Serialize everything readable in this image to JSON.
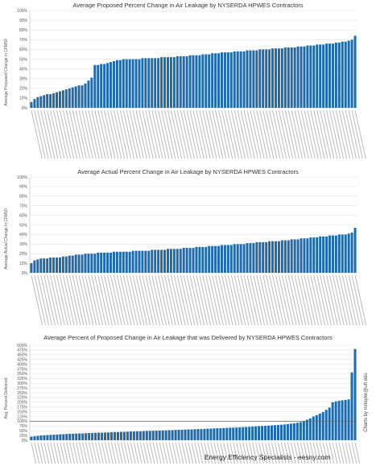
{
  "footer": {
    "text": "Energy Efficiency Specialists - eesny.com"
  },
  "credit": {
    "text": "Charts by mrtaylor@uft.edu"
  },
  "chart_data": [
    {
      "type": "bar",
      "title": "Average Proposed Percent Change in Air Leakage by NYSERDA HPWES Contractors",
      "xlabel": "",
      "ylabel": "Average Proposed Change in CFM50",
      "ylim": [
        0,
        100
      ],
      "yticks": [
        0,
        10,
        20,
        30,
        40,
        50,
        60,
        70,
        80,
        90,
        100
      ],
      "tick_suffix": "%",
      "bar_color": "#1f6aa8",
      "grid": true,
      "reference_line": null,
      "values": [
        6,
        9,
        11,
        12,
        13,
        14,
        14,
        15,
        16,
        17,
        18,
        19,
        20,
        21,
        22,
        23,
        23,
        25,
        28,
        31,
        44,
        44,
        45,
        45,
        46,
        47,
        48,
        49,
        49,
        50,
        50,
        50,
        50,
        50,
        50,
        51,
        51,
        51,
        51,
        51,
        51,
        52,
        52,
        52,
        52,
        52,
        53,
        53,
        53,
        53,
        54,
        54,
        54,
        54,
        55,
        55,
        55,
        56,
        56,
        56,
        57,
        57,
        57,
        57,
        58,
        58,
        58,
        58,
        59,
        59,
        59,
        59,
        60,
        60,
        60,
        60,
        61,
        61,
        61,
        61,
        62,
        62,
        62,
        62,
        63,
        63,
        63,
        64,
        64,
        64,
        65,
        65,
        65,
        66,
        66,
        66,
        67,
        67,
        68,
        68,
        69,
        70,
        74
      ]
    },
    {
      "type": "bar",
      "title": "Average Actual Percent Change in Air Leakage by NYSERDA HPWES Contractors",
      "xlabel": "",
      "ylabel": "Average Actual Change in CFM50",
      "ylim": [
        0,
        100
      ],
      "yticks": [
        0,
        10,
        20,
        30,
        40,
        50,
        60,
        70,
        80,
        90,
        100
      ],
      "tick_suffix": "%",
      "bar_color": "#1f6aa8",
      "grid": true,
      "reference_line": null,
      "values": [
        10,
        13,
        14,
        15,
        15,
        15,
        16,
        16,
        16,
        16,
        17,
        17,
        18,
        18,
        19,
        19,
        19,
        20,
        20,
        20,
        20,
        21,
        21,
        21,
        21,
        21,
        22,
        22,
        22,
        22,
        22,
        22,
        23,
        23,
        23,
        23,
        23,
        23,
        24,
        24,
        24,
        24,
        24,
        25,
        25,
        25,
        25,
        25,
        26,
        26,
        26,
        26,
        27,
        27,
        27,
        27,
        28,
        28,
        28,
        28,
        29,
        29,
        29,
        29,
        30,
        30,
        30,
        30,
        31,
        31,
        31,
        32,
        32,
        32,
        32,
        33,
        33,
        33,
        33,
        34,
        34,
        34,
        35,
        35,
        35,
        36,
        36,
        36,
        37,
        37,
        37,
        38,
        38,
        38,
        39,
        39,
        39,
        40,
        40,
        40,
        41,
        42,
        47
      ]
    },
    {
      "type": "bar",
      "title": "Average Percent of Proposed Change in Air Leakage that was Delivered  by NYSERDA HPWES Contractors",
      "xlabel": "",
      "ylabel": "Avg. Percent Delivered",
      "ylim": [
        0,
        500
      ],
      "yticks": [
        0,
        25,
        50,
        75,
        100,
        125,
        150,
        175,
        200,
        225,
        250,
        275,
        300,
        325,
        350,
        375,
        400,
        425,
        450,
        475,
        500
      ],
      "tick_suffix": "%",
      "bar_color": "#1f6aa8",
      "grid": true,
      "reference_line": 100,
      "values": [
        19,
        21,
        23,
        25,
        26,
        27,
        28,
        29,
        30,
        31,
        32,
        33,
        34,
        34,
        35,
        36,
        36,
        37,
        38,
        38,
        39,
        40,
        40,
        41,
        41,
        42,
        43,
        43,
        44,
        44,
        45,
        46,
        46,
        47,
        47,
        48,
        49,
        49,
        50,
        50,
        51,
        52,
        52,
        53,
        53,
        54,
        55,
        55,
        56,
        57,
        57,
        58,
        59,
        59,
        60,
        61,
        61,
        62,
        63,
        63,
        64,
        65,
        66,
        66,
        67,
        68,
        69,
        70,
        71,
        72,
        73,
        74,
        75,
        76,
        77,
        78,
        79,
        80,
        82,
        83,
        85,
        87,
        89,
        92,
        95,
        100,
        108,
        115,
        125,
        132,
        140,
        148,
        160,
        172,
        200,
        205,
        208,
        210,
        212,
        215,
        357,
        480
      ]
    }
  ]
}
